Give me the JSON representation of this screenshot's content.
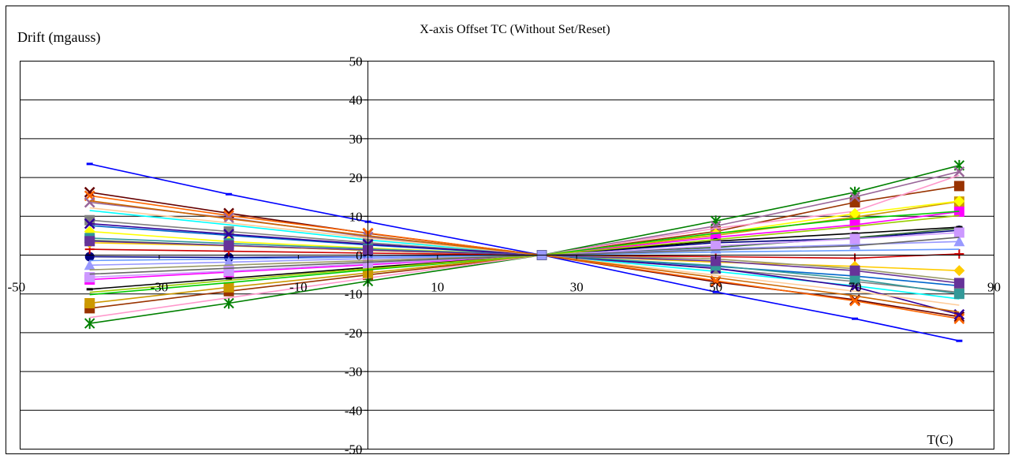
{
  "chart_data": {
    "type": "line",
    "title": "X-axis Offset TC (Without Set/Reset)",
    "ylabel": "Drift (mgauss)",
    "xlabel": "T(C)",
    "xlim": [
      -50,
      90
    ],
    "ylim": [
      -50,
      50
    ],
    "x_ticks": [
      -50,
      -30,
      -10,
      10,
      30,
      50,
      70,
      90
    ],
    "x_tick_labels": [
      "-50",
      "-30",
      "-10",
      "10",
      "30",
      "50",
      "70",
      "90"
    ],
    "y_ticks": [
      50,
      40,
      30,
      20,
      10,
      0,
      -10,
      -20,
      -30,
      -40,
      -50
    ],
    "y_tick_labels": [
      "50",
      "40",
      "30",
      "20",
      "10",
      "0",
      "-10",
      "-20",
      "-30",
      "-40",
      "-50"
    ],
    "grid": true,
    "legend": "none",
    "x": [
      -40,
      -20,
      0,
      25,
      50,
      70,
      85
    ],
    "series": [
      {
        "color": "#0000ff",
        "marker": "dash",
        "values": [
          23.5,
          15.7,
          8.6,
          0,
          -9.5,
          -16.4,
          -22.1
        ]
      },
      {
        "color": "#660000",
        "marker": "x",
        "values": [
          16.2,
          10.8,
          5.6,
          0,
          -6.9,
          -11.5,
          -15.9
        ]
      },
      {
        "color": "#ff6600",
        "marker": "x",
        "values": [
          15.3,
          10.2,
          5.7,
          0,
          -6.6,
          -11.8,
          -16.4
        ]
      },
      {
        "color": "#993300",
        "marker": "square",
        "values": [
          -13.7,
          -9.3,
          -5.1,
          0,
          6.1,
          13.6,
          17.8
        ]
      },
      {
        "color": "#008000",
        "marker": "star",
        "values": [
          -17.6,
          -12.4,
          -6.7,
          0,
          8.8,
          16.2,
          23.1
        ]
      },
      {
        "color": "#996699",
        "marker": "x",
        "values": [
          13.6,
          9.6,
          4.7,
          0,
          7.5,
          15.0,
          21.5
        ]
      },
      {
        "color": "#ff99cc",
        "marker": "none",
        "values": [
          -16.1,
          -11.0,
          -5.9,
          0,
          6.9,
          11.3,
          20.6
        ]
      },
      {
        "color": "#cc9900",
        "marker": "square",
        "values": [
          -12.4,
          -8.3,
          -4.6,
          0,
          5.1,
          9.8,
          13.8
        ]
      },
      {
        "color": "#ffff00",
        "marker": "diamond",
        "values": [
          6.1,
          3.5,
          1.8,
          0,
          5.5,
          10.7,
          13.9
        ]
      },
      {
        "color": "#ff00ff",
        "marker": "square",
        "values": [
          -6.3,
          -4.4,
          -2.5,
          0,
          4.6,
          7.8,
          11.2
        ]
      },
      {
        "color": "#00cc00",
        "marker": "none",
        "values": [
          -10.2,
          -7.1,
          -3.8,
          0,
          5.6,
          9.4,
          11.3
        ]
      },
      {
        "color": "#00ffff",
        "marker": "none",
        "values": [
          11.5,
          7.8,
          3.9,
          0,
          -4.2,
          -7.9,
          -11.3
        ]
      },
      {
        "color": "#808080",
        "marker": "square",
        "values": [
          9.0,
          6.1,
          3.2,
          0,
          -3.5,
          -6.8,
          -9.6
        ]
      },
      {
        "color": "#0066cc",
        "marker": "none",
        "values": [
          7.6,
          5.1,
          2.6,
          0,
          -2.9,
          -5.4,
          -7.9
        ]
      },
      {
        "color": "#000080",
        "marker": "circle",
        "values": [
          -0.4,
          -0.6,
          -0.4,
          0,
          3.2,
          4.3,
          6.4
        ]
      },
      {
        "color": "#000000",
        "marker": "dash",
        "values": [
          -8.8,
          -6.0,
          -3.2,
          0,
          3.6,
          5.6,
          7.2
        ]
      },
      {
        "color": "#336633",
        "marker": "none",
        "values": [
          3.8,
          2.5,
          1.2,
          0,
          2.0,
          4.5,
          6.9
        ]
      },
      {
        "color": "#cc0000",
        "marker": "plus",
        "values": [
          1.5,
          1.0,
          0.5,
          0,
          -0.4,
          -0.8,
          0.3
        ]
      },
      {
        "color": "#9999ff",
        "marker": "triangle",
        "values": [
          -2.6,
          -1.8,
          -0.9,
          0,
          1.6,
          2.7,
          3.5
        ]
      },
      {
        "color": "#6699ff",
        "marker": "none",
        "values": [
          -1.4,
          -1.0,
          -0.5,
          0,
          0.8,
          1.2,
          1.5
        ]
      },
      {
        "color": "#cc99ff",
        "marker": "square",
        "values": [
          -5.7,
          -4.1,
          -2.2,
          0,
          2.4,
          4.2,
          5.8
        ]
      },
      {
        "color": "#330099",
        "marker": "x",
        "values": [
          8.1,
          5.4,
          2.8,
          0,
          -3.4,
          -8.2,
          -15.3
        ]
      },
      {
        "color": "#ffcc00",
        "marker": "diamond",
        "values": [
          3.2,
          2.4,
          1.2,
          0,
          -1.8,
          -2.9,
          -4.0
        ]
      },
      {
        "color": "#339999",
        "marker": "square",
        "values": [
          4.4,
          3.0,
          1.6,
          0,
          -2.7,
          -6.2,
          -10.0
        ]
      },
      {
        "color": "#999966",
        "marker": "none",
        "values": [
          -3.8,
          -2.6,
          -1.4,
          0,
          -1.0,
          -3.5,
          -6.5
        ]
      },
      {
        "color": "#663399",
        "marker": "square",
        "values": [
          3.6,
          2.5,
          1.3,
          0,
          -1.5,
          -4.0,
          -7.2
        ]
      },
      {
        "color": "#ffcc99",
        "marker": "none",
        "values": [
          12.2,
          8.3,
          4.4,
          0,
          -5.2,
          -9.3,
          -12.9
        ]
      },
      {
        "color": "#99cc00",
        "marker": "none",
        "values": [
          -9.6,
          -6.5,
          -3.5,
          0,
          4.0,
          7.4,
          10.2
        ]
      },
      {
        "color": "#cc6600",
        "marker": "none",
        "values": [
          14.0,
          9.4,
          5.0,
          0,
          -5.8,
          -10.5,
          -14.7
        ]
      },
      {
        "color": "#666666",
        "marker": "none",
        "values": [
          -4.9,
          -3.4,
          -1.8,
          0,
          1.3,
          2.4,
          4.6
        ]
      }
    ]
  }
}
